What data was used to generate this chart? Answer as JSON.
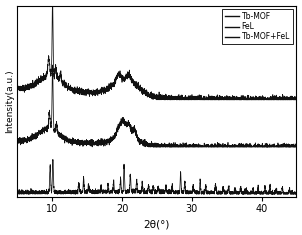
{
  "xlabel": "2θ(°)",
  "ylabel": "Intensity(a.u.)",
  "xlim": [
    5,
    45
  ],
  "xticks": [
    10,
    20,
    30,
    40
  ],
  "legend_labels": [
    "Tb-MOF",
    "FeL",
    "Tb-MOF+FeL"
  ],
  "line_color": "#111111",
  "offsets": [
    1.6,
    0.8,
    0.0
  ],
  "figsize": [
    3.02,
    2.35
  ],
  "dpi": 100
}
